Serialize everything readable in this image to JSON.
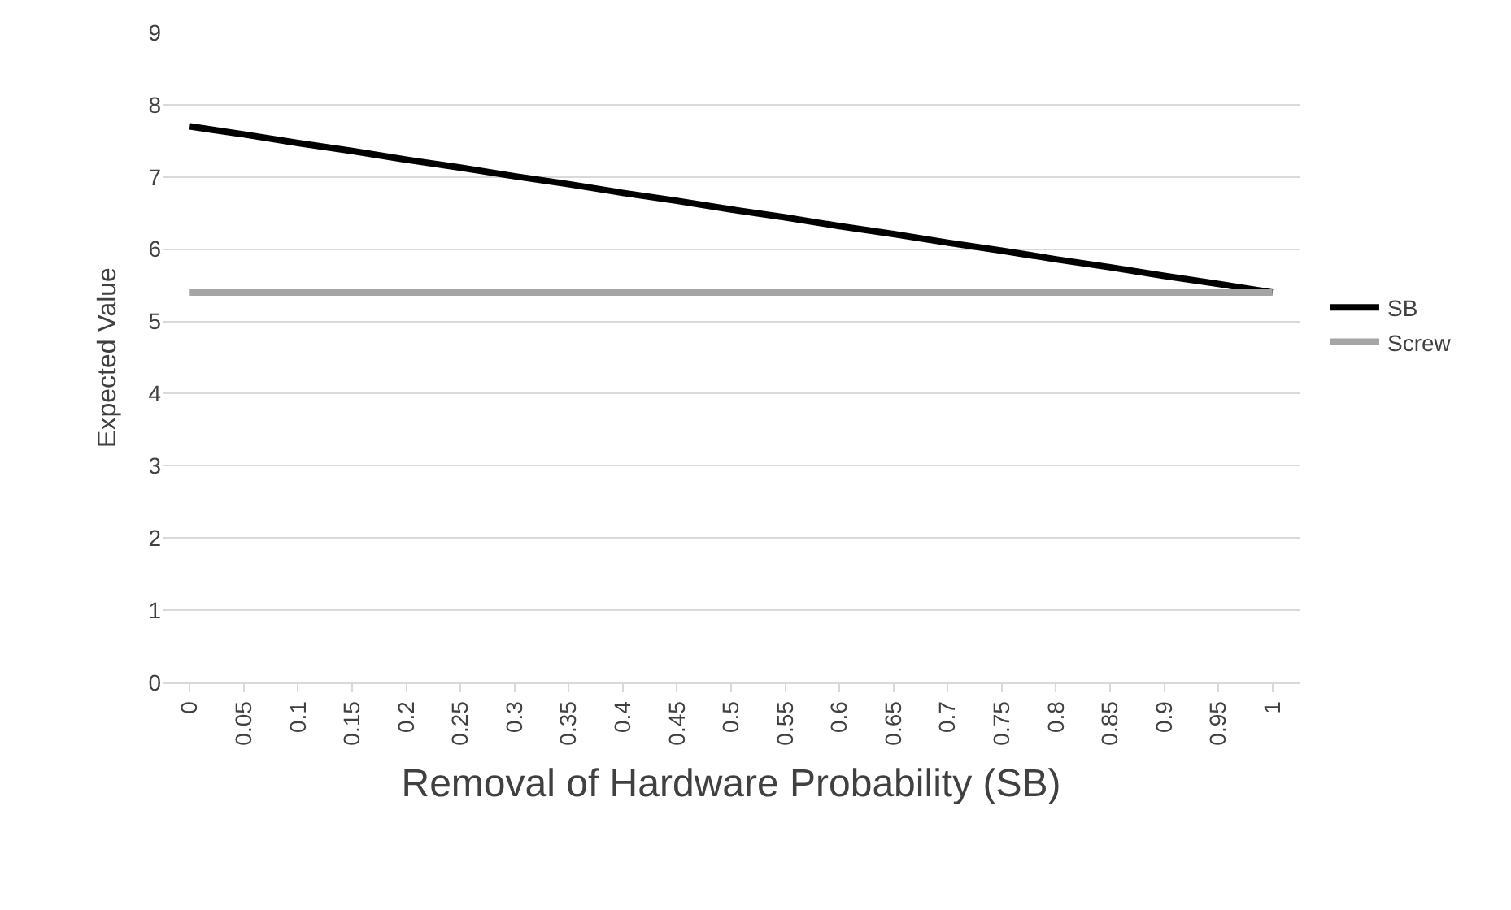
{
  "chart_data": {
    "type": "line",
    "xlabel": "Removal of Hardware Probability (SB)",
    "ylabel": "Expected Value",
    "categories": [
      "0",
      "0.05",
      "0.1",
      "0.15",
      "0.2",
      "0.25",
      "0.3",
      "0.35",
      "0.4",
      "0.45",
      "0.5",
      "0.55",
      "0.6",
      "0.65",
      "0.7",
      "0.75",
      "0.8",
      "0.85",
      "0.9",
      "0.95",
      "1"
    ],
    "series": [
      {
        "name": "SB",
        "color": "#000000",
        "values": [
          7.7,
          7.59,
          7.47,
          7.36,
          7.24,
          7.13,
          7.01,
          6.9,
          6.78,
          6.67,
          6.55,
          6.44,
          6.32,
          6.21,
          6.09,
          5.98,
          5.86,
          5.75,
          5.63,
          5.52,
          5.4
        ]
      },
      {
        "name": "Screw",
        "color": "#a5a5a5",
        "values": [
          5.4,
          5.4,
          5.4,
          5.4,
          5.4,
          5.4,
          5.4,
          5.4,
          5.4,
          5.4,
          5.4,
          5.4,
          5.4,
          5.4,
          5.4,
          5.4,
          5.4,
          5.4,
          5.4,
          5.4,
          5.4
        ]
      }
    ],
    "ylim": [
      0,
      9
    ],
    "yticks": [
      0,
      1,
      2,
      3,
      4,
      5,
      6,
      7,
      8,
      9
    ],
    "grid": "y",
    "legend": "right",
    "marker": "none",
    "line_style": "solid"
  }
}
